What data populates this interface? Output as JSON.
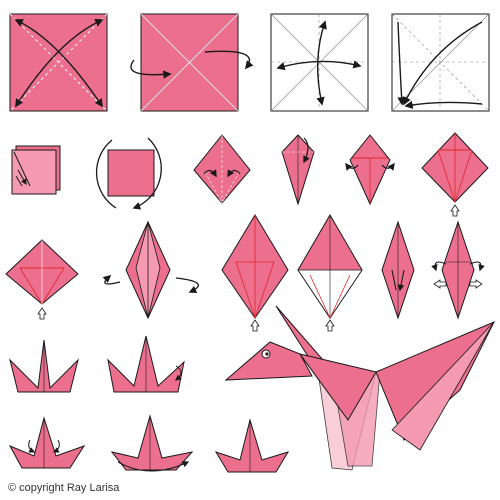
{
  "colors": {
    "paper": "#ec6f8e",
    "paper_light": "#f59ab0",
    "paper_pale": "#f8c6d2",
    "outline": "#1a1a1a",
    "crease": "#ffffff",
    "accent_red": "#e2252b"
  },
  "steps": [
    {
      "id": 1,
      "icon": "square-diagonal-fold"
    },
    {
      "id": 2,
      "icon": "square-turn-over"
    },
    {
      "id": 3,
      "icon": "square-fold-in-half"
    },
    {
      "id": 4,
      "icon": "square-collapse"
    },
    {
      "id": 5,
      "icon": "square-base-corner"
    },
    {
      "id": 6,
      "icon": "square-base-rotate"
    },
    {
      "id": 7,
      "icon": "diamond-fold-edges"
    },
    {
      "id": 8,
      "icon": "kite-fold-top"
    },
    {
      "id": 9,
      "icon": "kite-unfold"
    },
    {
      "id": 10,
      "icon": "diamond-petal-fold"
    },
    {
      "id": 11,
      "icon": "diamond-lift"
    },
    {
      "id": 12,
      "icon": "bird-base-turn-over"
    },
    {
      "id": 13,
      "icon": "bird-base"
    },
    {
      "id": 14,
      "icon": "bird-base-fold-edges"
    },
    {
      "id": 15,
      "icon": "narrow-base"
    },
    {
      "id": 16,
      "icon": "narrow-base-inside-reverse"
    },
    {
      "id": 17,
      "icon": "crane-neck-tail"
    },
    {
      "id": 18,
      "icon": "crane-head-fold"
    },
    {
      "id": 19,
      "icon": "crane-wings-spread"
    },
    {
      "id": 20,
      "icon": "crane-rotate"
    },
    {
      "id": 21,
      "icon": "crane-side"
    },
    {
      "id": 22,
      "icon": "finished-crane"
    }
  ],
  "copyright": "© copyright Ray Larisa"
}
